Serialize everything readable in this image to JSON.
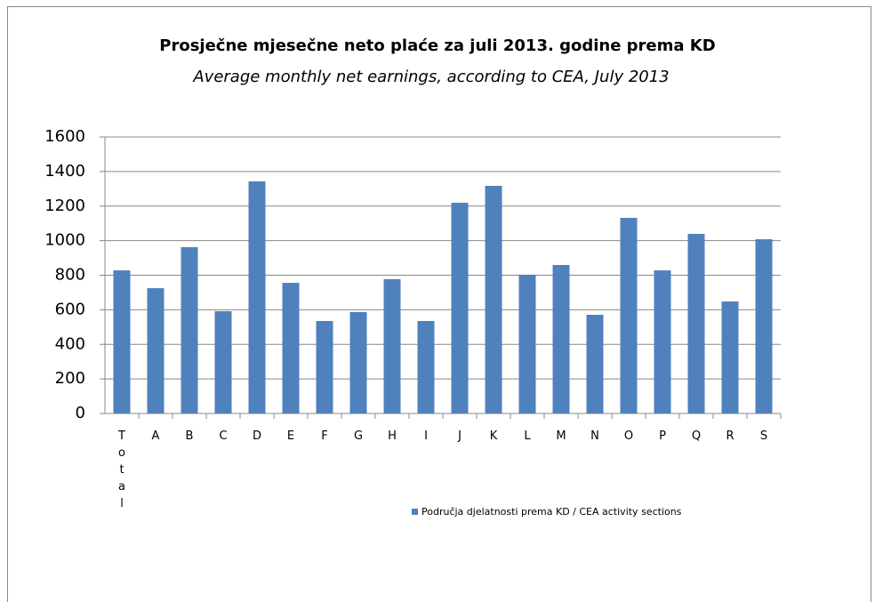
{
  "chart_data": {
    "type": "bar",
    "title": "Prosječne mjesečne neto plaće za juli 2013. godine prema KD",
    "subtitle": "Average monthly net earnings, according to CEA, July 2013",
    "categories": [
      "Total",
      "A",
      "B",
      "C",
      "D",
      "E",
      "F",
      "G",
      "H",
      "I",
      "J",
      "K",
      "L",
      "M",
      "N",
      "O",
      "P",
      "Q",
      "R",
      "S"
    ],
    "series": [
      {
        "name": "Područja djelatnosti prema KD / CEA activity sections",
        "color": "#4f81bd",
        "values": [
          828,
          725,
          962,
          592,
          1343,
          756,
          535,
          587,
          777,
          535,
          1219,
          1317,
          803,
          859,
          571,
          1132,
          828,
          1039,
          648,
          1008
        ]
      }
    ],
    "ylim": [
      0,
      1600
    ],
    "yticks": [
      0,
      200,
      400,
      600,
      800,
      1000,
      1200,
      1400,
      1600
    ],
    "grid": true,
    "legend": "bottom"
  }
}
